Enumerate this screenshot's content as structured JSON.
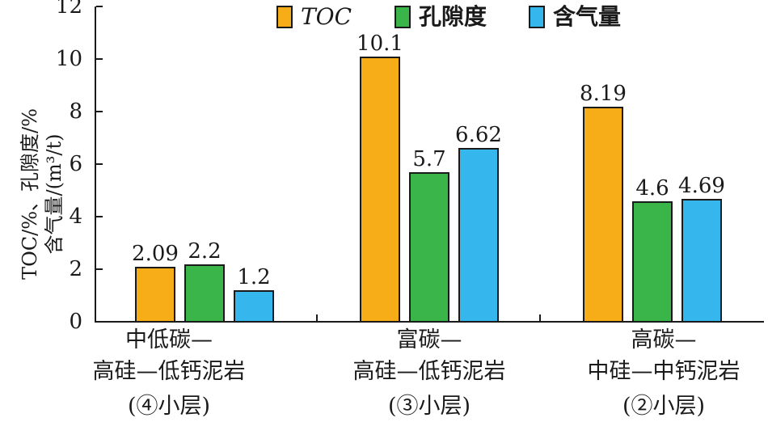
{
  "chart_data": {
    "type": "bar",
    "title": "",
    "xlabel": "",
    "ylabel": "TOC/%、孔隙度/%含气量/(m³/t)",
    "ylabel_lines": [
      "TOC/%、孔隙度/%",
      "含气量/(m³/t)"
    ],
    "ylim": [
      0,
      12
    ],
    "yticks": [
      0,
      2,
      4,
      6,
      8,
      10,
      12
    ],
    "grid": false,
    "legend_position": "top",
    "categories": [
      [
        "中低碳—",
        "高硅—低钙泥岩",
        "(④小层)"
      ],
      [
        "富碳—",
        "高硅—低钙泥岩",
        "(③小层)"
      ],
      [
        "高碳—",
        "中硅—中钙泥岩",
        "(②小层)"
      ]
    ],
    "series": [
      {
        "name": "TOC",
        "color": "#f7ad17",
        "values": [
          2.09,
          10.1,
          8.19
        ],
        "labels": [
          "2.09",
          "10.1",
          "8.19"
        ]
      },
      {
        "name": "孔隙度",
        "color": "#3ab54a",
        "values": [
          2.2,
          5.7,
          4.6
        ],
        "labels": [
          "2.2",
          "5.7",
          "4.6"
        ]
      },
      {
        "name": "含气量",
        "color": "#35b6ec",
        "values": [
          1.2,
          6.62,
          4.69
        ],
        "labels": [
          "1.2",
          "6.62",
          "4.69"
        ]
      }
    ]
  }
}
